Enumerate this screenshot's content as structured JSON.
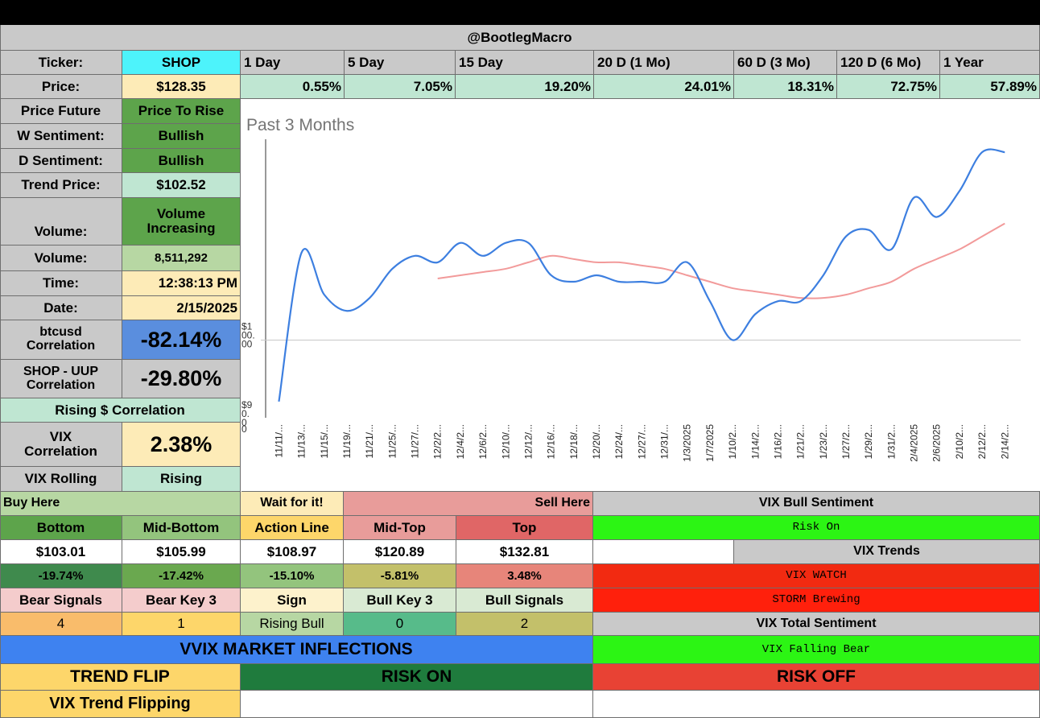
{
  "header": {
    "title": "@BootlegMacro"
  },
  "ticker": {
    "label": "Ticker:",
    "value": "SHOP"
  },
  "periods": [
    "1 Day",
    "5 Day",
    "15 Day",
    "20 D (1 Mo)",
    "60 D (3 Mo)",
    "120 D (6 Mo)",
    "1 Year"
  ],
  "price": {
    "label": "Price:",
    "value": "$128.35"
  },
  "changes": [
    "0.55%",
    "7.05%",
    "19.20%",
    "24.01%",
    "18.31%",
    "72.75%",
    "57.89%"
  ],
  "info": {
    "price_future_label": "Price Future",
    "price_future_value": "Price To Rise",
    "w_sentiment_label": "W Sentiment:",
    "w_sentiment_value": "Bullish",
    "d_sentiment_label": "D Sentiment:",
    "d_sentiment_value": "Bullish",
    "trend_price_label": "Trend Price:",
    "trend_price_value": "$102.52",
    "volume_trend_label": "Volume:",
    "volume_trend_line1": "Volume",
    "volume_trend_line2": "Increasing",
    "volume_label": "Volume:",
    "volume_value": "8,511,292",
    "time_label": "Time:",
    "time_value": "12:38:13 PM",
    "date_label": "Date:",
    "date_value": "2/15/2025",
    "btc_label_line1": "btcusd",
    "btc_label_line2": "Correlation",
    "btc_value": "-82.14%",
    "uup_label_line1": "SHOP - UUP",
    "uup_label_line2": "Correlation",
    "uup_value": "-29.80%",
    "rising_corr": "Rising $ Correlation",
    "vix_corr_label_line1": "VIX",
    "vix_corr_label_line2": "Correlation",
    "vix_corr_value": "2.38%",
    "vix_rolling_label": "VIX Rolling",
    "vix_rolling_value": "Rising"
  },
  "levels": {
    "buy_here": "Buy Here",
    "wait": "Wait for it!",
    "sell_here": "Sell Here",
    "headers": [
      "Bottom",
      "Mid-Bottom",
      "Action Line",
      "Mid-Top",
      "Top"
    ],
    "prices": [
      "$103.01",
      "$105.99",
      "$108.97",
      "$120.89",
      "$132.81"
    ],
    "percents": [
      "-19.74%",
      "-17.42%",
      "-15.10%",
      "-5.81%",
      "3.48%"
    ]
  },
  "signals": {
    "headers": [
      "Bear Signals",
      "Bear Key 3",
      "Sign",
      "Bull Key 3",
      "Bull Signals"
    ],
    "values": [
      "4",
      "1",
      "Rising Bull",
      "0",
      "2"
    ]
  },
  "vix_panel": {
    "bull_sentiment_label": "VIX Bull Sentiment",
    "risk_on": "Risk On",
    "vix_trends_label": "VIX Trends",
    "vix_watch": "VIX WATCH",
    "storm": "STORM Brewing",
    "total_sentiment_label": "VIX Total Sentiment",
    "falling_bear": "VIX Falling Bear"
  },
  "bottom": {
    "vvix": "VVIX MARKET INFLECTIONS",
    "trend_flip": "TREND FLIP",
    "risk_on": "RISK ON",
    "risk_off": "RISK OFF",
    "vix_trend_flipping": "VIX Trend Flipping"
  },
  "colors": {
    "header_gray": "#c9c9c9",
    "cyan": "#4df3fb",
    "pale_yellow": "#fdebb7",
    "mint": "#bfe6d2",
    "green": "#5da44b",
    "light_green": "#b7d7a3",
    "blue": "#5a8ede",
    "green_bright": "#2cf514",
    "red": "#f22a11",
    "red_bright": "#ff200c",
    "vvix_blue": "#3e82f0",
    "yellow": "#fdd66a",
    "dark_green": "#1f7b3d",
    "risk_off_red": "#e84234",
    "price_line": "#3d7fe0",
    "ma_line": "#f29a9a"
  },
  "chart_data": {
    "type": "line",
    "title": "Past 3 Months",
    "ytick_labels": [
      "$1\n00.\n00",
      "$9\n0.\n0",
      "0"
    ],
    "x": [
      "11/11/...",
      "11/13/...",
      "11/15/...",
      "11/19/...",
      "11/21/...",
      "11/25/...",
      "11/27/...",
      "12/2/2...",
      "12/4/2...",
      "12/6/2...",
      "12/10/...",
      "12/12/...",
      "12/16/...",
      "12/18/...",
      "12/20/...",
      "12/24/...",
      "12/27/...",
      "12/31/...",
      "1/3/2025",
      "1/7/2025",
      "1/10/2...",
      "1/14/2...",
      "1/16/2...",
      "1/21/2...",
      "1/23/2...",
      "1/27/2...",
      "1/29/2...",
      "1/31/2...",
      "2/4/2025",
      "2/6/2025",
      "2/10/2...",
      "2/12/2...",
      "2/14/2..."
    ],
    "series": [
      {
        "color": "#3d7fe0",
        "values": [
          90.5,
          113.5,
          107,
          104.5,
          106.5,
          111,
          113,
          112,
          115,
          113,
          115,
          115,
          110,
          109,
          110,
          109,
          109,
          109,
          112,
          106,
          100,
          104,
          106,
          106,
          110,
          116,
          117,
          114,
          122,
          119,
          123,
          129,
          129
        ]
      },
      {
        "color": "#f29a9a",
        "values": [
          null,
          null,
          null,
          null,
          null,
          null,
          null,
          109.5,
          110,
          110.5,
          111,
          112,
          113,
          112.5,
          112,
          112,
          111.5,
          111,
          110,
          109,
          108,
          107.5,
          107,
          106.5,
          106.5,
          107,
          108,
          109,
          111,
          112.5,
          114,
          116,
          118
        ]
      }
    ],
    "ylim": [
      88,
      131
    ],
    "gridline_y": 100
  }
}
